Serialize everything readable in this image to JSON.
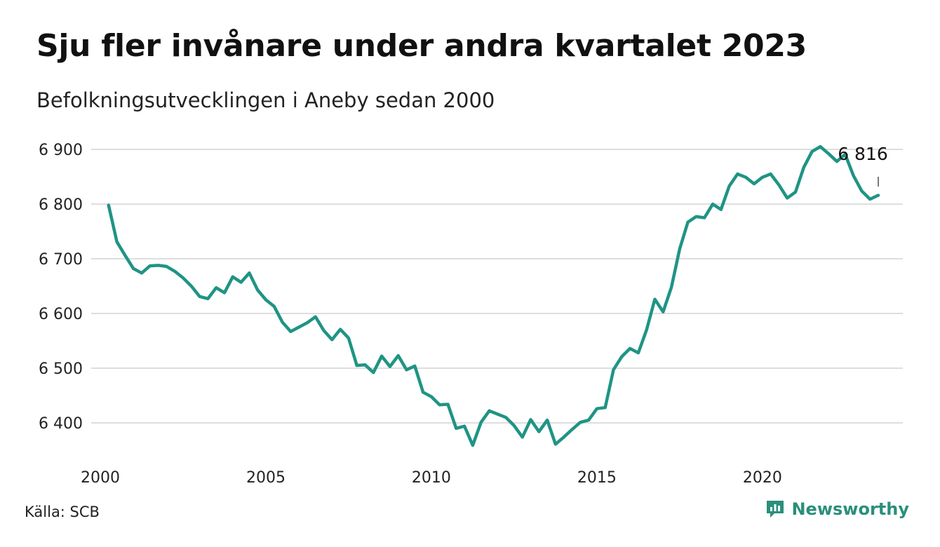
{
  "chart_data": {
    "type": "line",
    "title": "Sju fler invånare under andra kvartalet 2023",
    "subtitle": "Befolkningsutvecklingen i Aneby sedan 2000",
    "source": "Källa: SCB",
    "brand": "Newsworthy",
    "line_color": "#1f9484",
    "grid": true,
    "ylim": [
      6340,
      6920
    ],
    "xlim": [
      2000.0,
      2023.5
    ],
    "y_ticks": [
      {
        "value": 6400,
        "label": "6 400"
      },
      {
        "value": 6500,
        "label": "6 500"
      },
      {
        "value": 6600,
        "label": "6 600"
      },
      {
        "value": 6700,
        "label": "6 700"
      },
      {
        "value": 6800,
        "label": "6 800"
      },
      {
        "value": 6900,
        "label": "6 900"
      }
    ],
    "x_ticks": [
      {
        "value": 2000,
        "label": "2000"
      },
      {
        "value": 2005,
        "label": "2005"
      },
      {
        "value": 2010,
        "label": "2010"
      },
      {
        "value": 2015,
        "label": "2015"
      },
      {
        "value": 2020,
        "label": "2020"
      }
    ],
    "last_value_label": "6 816",
    "series": [
      {
        "x": [
          2000.25,
          2000.5,
          2000.75,
          2001.0,
          2001.25,
          2001.5,
          2001.75,
          2002.0,
          2002.25,
          2002.5,
          2002.75,
          2003.0,
          2003.25,
          2003.5,
          2003.75,
          2004.0,
          2004.25,
          2004.5,
          2004.75,
          2005.0,
          2005.25,
          2005.5,
          2005.75,
          2006.0,
          2006.25,
          2006.5,
          2006.75,
          2007.0,
          2007.25,
          2007.5,
          2007.75,
          2008.0,
          2008.25,
          2008.5,
          2008.75,
          2009.0,
          2009.25,
          2009.5,
          2009.75,
          2010.0,
          2010.25,
          2010.5,
          2010.75,
          2011.0,
          2011.25,
          2011.5,
          2011.75,
          2012.0,
          2012.25,
          2012.5,
          2012.75,
          2013.0,
          2013.25,
          2013.5,
          2013.75,
          2014.0,
          2014.25,
          2014.5,
          2014.75,
          2015.0,
          2015.25,
          2015.5,
          2015.75,
          2016.0,
          2016.25,
          2016.5,
          2016.75,
          2017.0,
          2017.25,
          2017.5,
          2017.75,
          2018.0,
          2018.25,
          2018.5,
          2018.75,
          2019.0,
          2019.25,
          2019.5,
          2019.75,
          2020.0,
          2020.25,
          2020.5,
          2020.75,
          2021.0,
          2021.25,
          2021.5,
          2021.75,
          2022.0,
          2022.25,
          2022.5,
          2022.75,
          2023.0,
          2023.25,
          2023.5
        ],
        "values": [
          6798,
          6731,
          6706,
          6682,
          6674,
          6687,
          6688,
          6686,
          6677,
          6665,
          6650,
          6631,
          6627,
          6647,
          6638,
          6667,
          6657,
          6674,
          6643,
          6625,
          6613,
          6584,
          6567,
          6575,
          6583,
          6594,
          6569,
          6552,
          6571,
          6555,
          6505,
          6506,
          6492,
          6522,
          6503,
          6523,
          6497,
          6504,
          6456,
          6448,
          6433,
          6434,
          6390,
          6394,
          6359,
          6401,
          6422,
          6416,
          6410,
          6395,
          6374,
          6406,
          6384,
          6405,
          6361,
          6374,
          6388,
          6401,
          6405,
          6426,
          6428,
          6497,
          6521,
          6536,
          6528,
          6570,
          6626,
          6603,
          6648,
          6718,
          6767,
          6777,
          6775,
          6800,
          6790,
          6833,
          6855,
          6849,
          6837,
          6849,
          6855,
          6835,
          6811,
          6822,
          6867,
          6896,
          6905,
          6892,
          6878,
          6891,
          6852,
          6824,
          6809,
          6816
        ]
      }
    ]
  }
}
